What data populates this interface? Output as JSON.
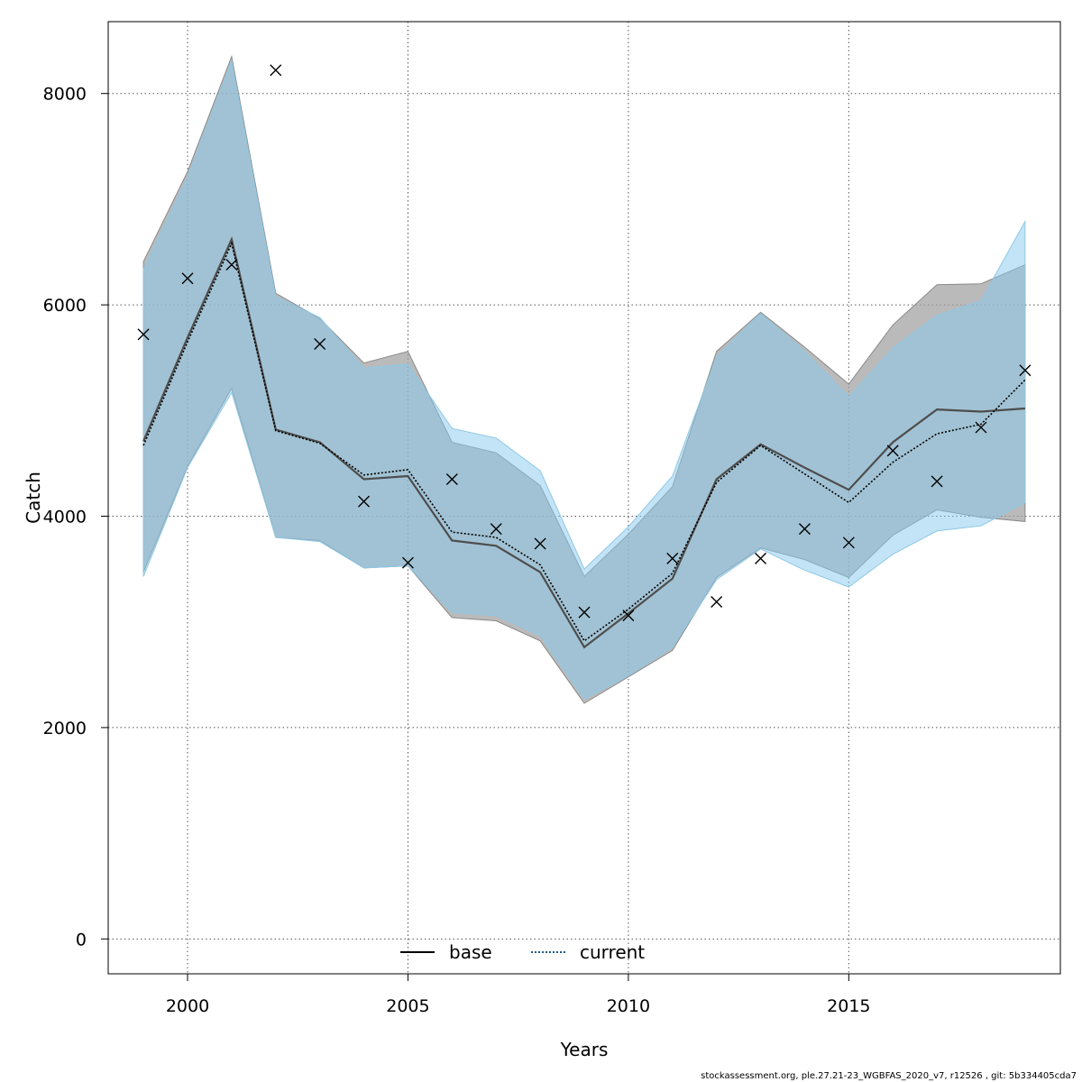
{
  "chart_data": {
    "type": "line",
    "title": "",
    "xlabel": "Years",
    "ylabel": "Catch",
    "xlim": [
      1998.2,
      2019.8
    ],
    "ylim": [
      -330,
      8680
    ],
    "x_ticks": [
      2000,
      2005,
      2010,
      2015
    ],
    "y_ticks": [
      0,
      2000,
      4000,
      6000,
      8000
    ],
    "grid": true,
    "legend_position": "bottom-center",
    "x": [
      1999,
      2000,
      2001,
      2002,
      2003,
      2004,
      2005,
      2006,
      2007,
      2008,
      2009,
      2010,
      2011,
      2012,
      2013,
      2014,
      2015,
      2016,
      2017,
      2018,
      2019
    ],
    "series": [
      {
        "name": "base",
        "style": "solid",
        "color": "#4d4d4d",
        "band_color": "#a0a0a0",
        "values": [
          4710,
          5690,
          6620,
          4820,
          4700,
          4350,
          4380,
          3770,
          3720,
          3470,
          2760,
          3080,
          3410,
          4350,
          4680,
          4460,
          4250,
          4700,
          5010,
          4990,
          5020
        ],
        "lower": [
          3470,
          4470,
          5210,
          3800,
          3770,
          3510,
          3530,
          3040,
          3010,
          2820,
          2230,
          2480,
          2730,
          3420,
          3700,
          3590,
          3420,
          3820,
          4060,
          3990,
          3950
        ],
        "upper": [
          6410,
          7260,
          8350,
          6110,
          5870,
          5450,
          5560,
          4700,
          4600,
          4290,
          3430,
          3830,
          4280,
          5560,
          5930,
          5600,
          5250,
          5810,
          6190,
          6200,
          6380
        ]
      },
      {
        "name": "current",
        "style": "dotted",
        "color": "#1a5a8a",
        "band_color": "#87c9ee",
        "values": [
          4670,
          5650,
          6580,
          4810,
          4690,
          4390,
          4440,
          3850,
          3800,
          3540,
          2820,
          3120,
          3460,
          4320,
          4670,
          4400,
          4130,
          4510,
          4780,
          4870,
          5290
        ],
        "lower": [
          3430,
          4460,
          5170,
          3800,
          3760,
          3510,
          3530,
          3090,
          3060,
          2870,
          2270,
          2490,
          2760,
          3400,
          3690,
          3490,
          3330,
          3640,
          3860,
          3910,
          4130
        ],
        "upper": [
          6340,
          7210,
          8310,
          6080,
          5880,
          5400,
          5440,
          4830,
          4740,
          4430,
          3500,
          3900,
          4380,
          5510,
          5920,
          5560,
          5130,
          5590,
          5900,
          6040,
          6790
        ]
      }
    ],
    "observations": {
      "marker": "x",
      "x": [
        1999,
        2000,
        2001,
        2002,
        2003,
        2004,
        2005,
        2006,
        2007,
        2008,
        2009,
        2010,
        2011,
        2012,
        2013,
        2014,
        2015,
        2016,
        2017,
        2018,
        2019
      ],
      "values": [
        5720,
        6250,
        6380,
        8220,
        5630,
        4140,
        3560,
        4350,
        3880,
        3740,
        3090,
        3060,
        3600,
        3190,
        3600,
        3880,
        3750,
        4620,
        4330,
        4840,
        5380
      ]
    }
  },
  "footer_text": "stockassessment.org, ple.27.21-23_WGBFAS_2020_v7, r12526 , git: 5b334405cda7"
}
